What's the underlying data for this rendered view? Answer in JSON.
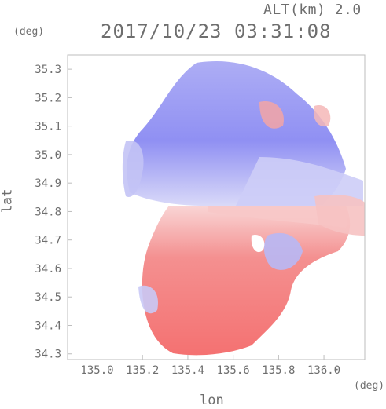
{
  "header": {
    "altitude_label": "ALT(km) 2.0",
    "datetime": "2017/10/23 03:31:08"
  },
  "axes": {
    "y_unit": "(deg)",
    "x_unit": "(deg)",
    "x_label": "lon",
    "y_label": "lat"
  },
  "chart_data": {
    "type": "heatmap",
    "xlabel": "lon",
    "ylabel": "lat",
    "xlim": [
      134.87,
      136.18
    ],
    "ylim": [
      34.28,
      35.35
    ],
    "x_ticks": [
      "135.0",
      "135.2",
      "135.4",
      "135.6",
      "135.8",
      "136.0"
    ],
    "y_ticks": [
      "35.3",
      "35.2",
      "35.1",
      "35.0",
      "34.9",
      "34.8",
      "34.7",
      "34.6",
      "34.5",
      "34.4",
      "34.3"
    ],
    "x_tick_values": [
      135.0,
      135.2,
      135.4,
      135.6,
      135.8,
      136.0
    ],
    "y_tick_values": [
      35.3,
      35.2,
      35.1,
      35.0,
      34.9,
      34.8,
      34.7,
      34.6,
      34.5,
      34.4,
      34.3
    ],
    "colors": {
      "approaching": "#6f6ff2",
      "receding": "#f06a6a",
      "light_blue": "#c9c9f6",
      "light_red": "#f7c6c6",
      "axis": "#bdbdbd"
    },
    "radar_center": [
      135.52,
      34.8
    ]
  }
}
